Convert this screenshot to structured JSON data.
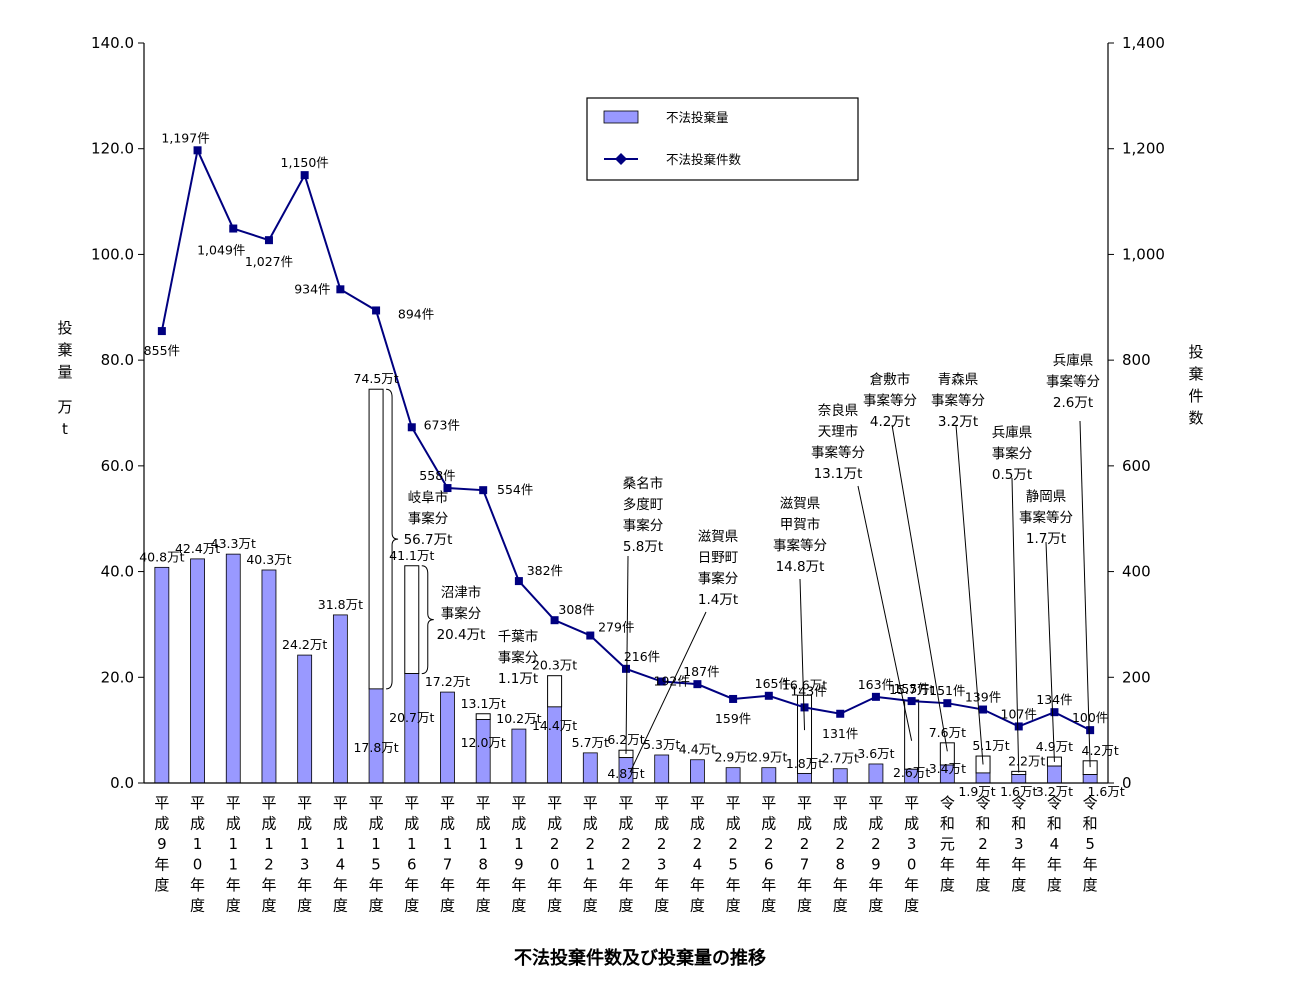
{
  "chart_data": {
    "type": "bar",
    "title": "不法投棄件数及び投棄量の推移",
    "left_axis_label": "投棄量 万t",
    "right_axis_label": "投棄件数",
    "ylim_left": [
      0,
      140
    ],
    "ylim_right": [
      0,
      1400
    ],
    "yticks_left": [
      "0.0",
      "20.0",
      "40.0",
      "60.0",
      "80.0",
      "100.0",
      "120.0",
      "140.0"
    ],
    "yticks_right": [
      "0",
      "200",
      "400",
      "600",
      "800",
      "1,000",
      "1,200",
      "1,400"
    ],
    "legend": {
      "bar": "不法投棄量",
      "line": "不法投棄件数",
      "position": "top-center"
    },
    "colors": {
      "bar_fill": "#9999ff",
      "line": "#000080",
      "outline": "#000000",
      "special": "#ffffff"
    },
    "categories": [
      "平成9年度",
      "平成10年度",
      "平成11年度",
      "平成12年度",
      "平成13年度",
      "平成14年度",
      "平成15年度",
      "平成16年度",
      "平成17年度",
      "平成18年度",
      "平成19年度",
      "平成20年度",
      "平成21年度",
      "平成22年度",
      "平成23年度",
      "平成24年度",
      "平成25年度",
      "平成26年度",
      "平成27年度",
      "平成28年度",
      "平成29年度",
      "平成30年度",
      "令和元年度",
      "令和2年度",
      "令和3年度",
      "令和4年度",
      "令和5年度"
    ],
    "series": [
      {
        "name": "不法投棄量",
        "kind": "bar",
        "unit": "万t",
        "values": [
          40.8,
          42.4,
          43.3,
          40.3,
          24.2,
          31.8,
          17.8,
          20.7,
          17.2,
          12.0,
          10.2,
          14.4,
          5.7,
          4.8,
          5.3,
          4.4,
          2.9,
          2.9,
          1.8,
          2.7,
          3.6,
          2.6,
          3.4,
          1.9,
          1.6,
          3.2,
          1.6
        ],
        "totals": [
          40.8,
          42.4,
          43.3,
          40.3,
          24.2,
          31.8,
          74.5,
          41.1,
          17.2,
          13.1,
          10.2,
          20.3,
          5.7,
          6.2,
          5.3,
          4.4,
          2.9,
          2.9,
          16.6,
          2.7,
          3.6,
          15.7,
          7.6,
          5.1,
          2.2,
          4.9,
          4.2
        ]
      },
      {
        "name": "不法投棄件数",
        "kind": "line",
        "unit": "件",
        "values": [
          855,
          1197,
          1049,
          1027,
          1150,
          934,
          894,
          673,
          558,
          554,
          382,
          308,
          279,
          216,
          192,
          187,
          159,
          165,
          143,
          131,
          163,
          155,
          151,
          139,
          107,
          134,
          100
        ]
      }
    ],
    "bar_labels": [
      "40.8万t",
      "42.4万t",
      "43.3万t",
      "40.3万t",
      "24.2万t",
      "31.8万t",
      "17.8万t",
      "20.7万t",
      "17.2万t",
      "12.0万t",
      "10.2万t",
      "14.4万t",
      "5.7万t",
      "4.8万t",
      "5.3万t",
      "4.4万t",
      "2.9万t",
      "2.9万t",
      "1.8万t",
      "2.7万t",
      "3.6万t",
      "2.6万t",
      "3.4万t",
      "1.9万t",
      "1.6万t",
      "3.2万t",
      "1.6万t"
    ],
    "total_labels": [
      "",
      "",
      "",
      "",
      "",
      "",
      "74.5万t",
      "41.1万t",
      "",
      "13.1万t",
      "",
      "20.3万t",
      "",
      "6.2万t",
      "",
      "",
      "",
      "",
      "16.6万t",
      "",
      "",
      "15.7万t",
      "7.6万t",
      "5.1万t",
      "2.2万t",
      "4.9万t",
      "4.2万t"
    ],
    "line_labels": [
      "855件",
      "1,197件",
      "1,049件",
      "1,027件",
      "1,150件",
      "934件",
      "894件",
      "673件",
      "558件",
      "554件",
      "382件",
      "308件",
      "279件",
      "216件",
      "192件",
      "187件",
      "159件",
      "165件",
      "143件",
      "131件",
      "163件",
      "155件",
      "151件",
      "139件",
      "107件",
      "134件",
      "100件"
    ],
    "annotations": [
      {
        "text": [
          "岐阜市",
          "事案分",
          "56.7万t"
        ]
      },
      {
        "text": [
          "沼津市",
          "事案分",
          "20.4万t"
        ]
      },
      {
        "text": [
          "千葉市",
          "事案分",
          "1.1万t"
        ]
      },
      {
        "text": [
          "桑名市",
          "多度町",
          "事案分",
          "5.8万t"
        ]
      },
      {
        "text": [
          "滋賀県",
          "日野町",
          "事案分",
          "1.4万t"
        ]
      },
      {
        "text": [
          "滋賀県",
          "甲賀市",
          "事案等分",
          "14.8万t"
        ]
      },
      {
        "text": [
          "奈良県",
          "天理市",
          "事案等分",
          "13.1万t"
        ]
      },
      {
        "text": [
          "倉敷市",
          "事案等分",
          "4.2万t"
        ]
      },
      {
        "text": [
          "青森県",
          "事案等分",
          "3.2万t"
        ]
      },
      {
        "text": [
          "兵庫県",
          "事案分",
          "0.5万t"
        ]
      },
      {
        "text": [
          "静岡県",
          "事案等分",
          "1.7万t"
        ]
      },
      {
        "text": [
          "兵庫県",
          "事案等分",
          "2.6万t"
        ]
      }
    ]
  }
}
